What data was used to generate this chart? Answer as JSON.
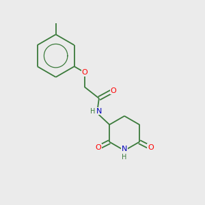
{
  "bg_color": "#ebebeb",
  "bond_color": "#3a7a3a",
  "O_color": "#ff0000",
  "N_color": "#0000bb",
  "H_color": "#3a7a3a",
  "line_color": "#3a7a3a",
  "font_size": 8,
  "lw": 1.3,
  "figsize": [
    3.0,
    3.0
  ],
  "dpi": 100,
  "xlim": [
    0,
    10
  ],
  "ylim": [
    0,
    10
  ]
}
